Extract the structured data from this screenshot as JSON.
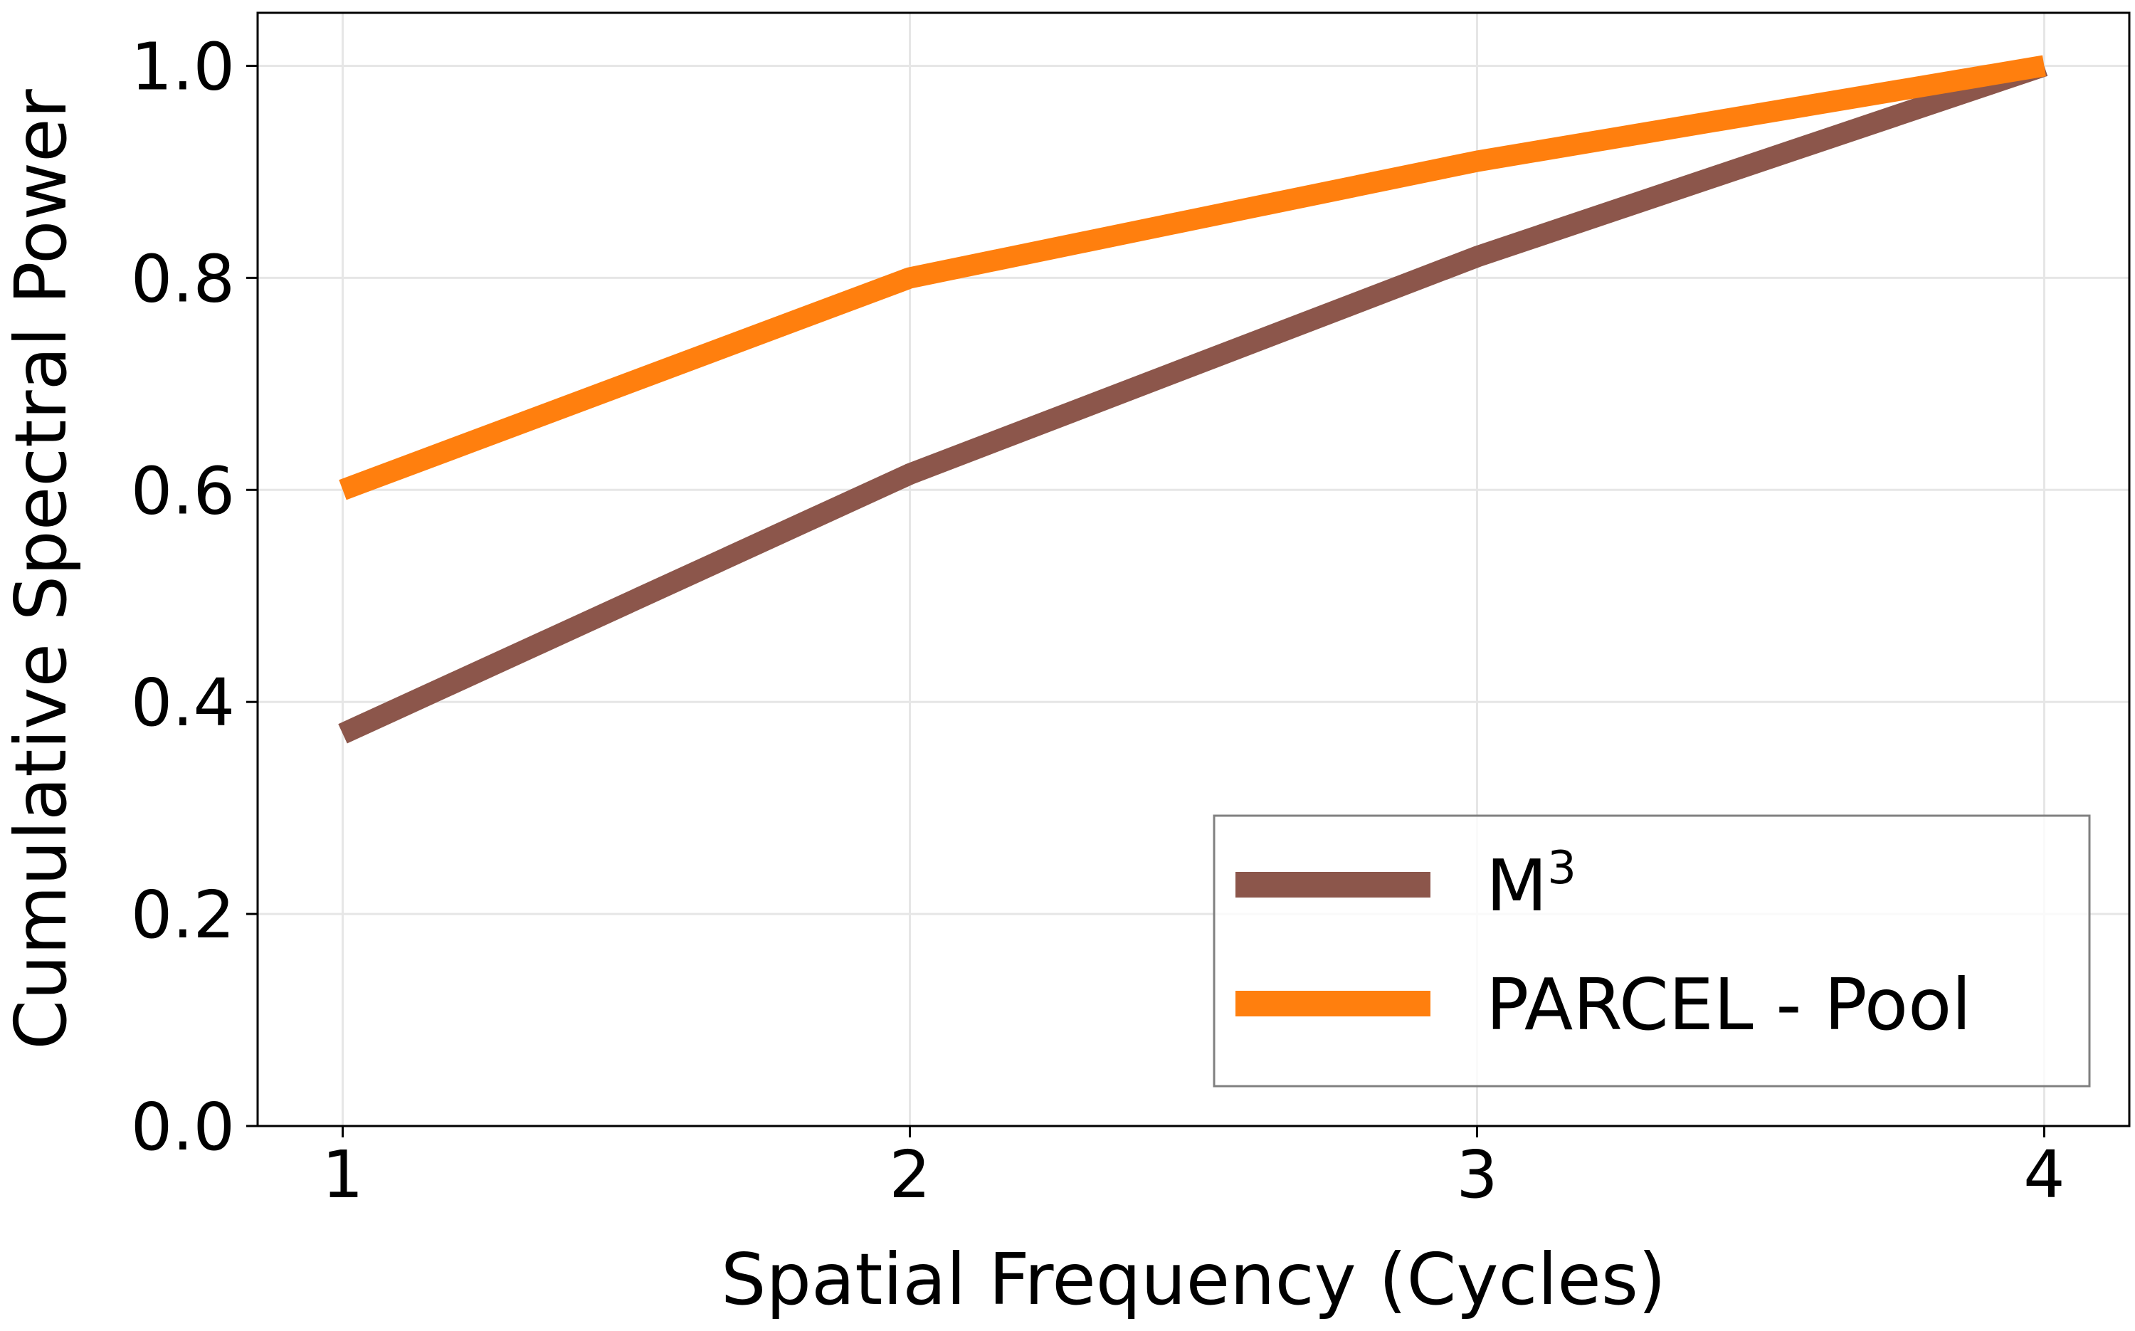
{
  "chart_data": {
    "type": "line",
    "xlabel": "Spatial Frequency (Cycles)",
    "ylabel": "Cumulative Spectral Power",
    "x": [
      1,
      2,
      3,
      4
    ],
    "xticks": [
      "1",
      "2",
      "3",
      "4"
    ],
    "yticks": [
      "0.0",
      "0.2",
      "0.4",
      "0.6",
      "0.8",
      "1.0"
    ],
    "xlim": [
      0.85,
      4.15
    ],
    "ylim": [
      0.0,
      1.05
    ],
    "grid": true,
    "legend_position": "lower-right",
    "series": [
      {
        "name": "M",
        "name_superscript": "3",
        "color": "#8c564b",
        "values": [
          0.37,
          0.615,
          0.82,
          1.0
        ]
      },
      {
        "name": "PARCEL - Pool",
        "color": "#ff7f0e",
        "values": [
          0.6,
          0.8,
          0.91,
          1.0
        ]
      }
    ]
  }
}
